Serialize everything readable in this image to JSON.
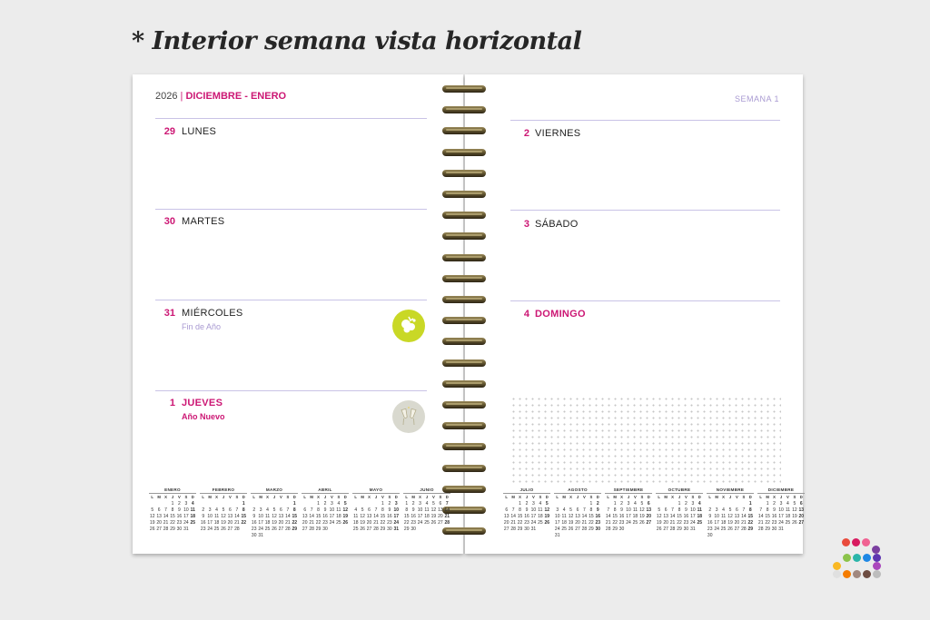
{
  "headline": "* Interior semana vista horizontal",
  "left_page": {
    "year": "2026",
    "separator": "|",
    "months": "DICIEMBRE - ENERO",
    "days": [
      {
        "num": "29",
        "name": "LUNES",
        "note": "",
        "holiday": false
      },
      {
        "num": "30",
        "name": "MARTES",
        "note": "",
        "holiday": false
      },
      {
        "num": "31",
        "name": "MIÉRCOLES",
        "note": "Fin de Año",
        "holiday": false,
        "icon": "celebration-icon"
      },
      {
        "num": "1",
        "name": "JUEVES",
        "note": "Año Nuevo",
        "holiday": true,
        "icon": "champagne-toast-icon"
      }
    ],
    "calendar": {
      "weekday_headers": [
        "L",
        "M",
        "X",
        "J",
        "V",
        "S",
        "D"
      ],
      "months": [
        {
          "name": "ENERO",
          "start": 3,
          "days": 31
        },
        {
          "name": "FEBRERO",
          "start": 6,
          "days": 28
        },
        {
          "name": "MARZO",
          "start": 6,
          "days": 31
        },
        {
          "name": "ABRIL",
          "start": 2,
          "days": 30
        },
        {
          "name": "MAYO",
          "start": 4,
          "days": 31
        },
        {
          "name": "JUNIO",
          "start": 0,
          "days": 30
        }
      ]
    }
  },
  "right_page": {
    "week_label": "SEMANA 1",
    "days": [
      {
        "num": "2",
        "name": "VIERNES",
        "holiday": false
      },
      {
        "num": "3",
        "name": "SÁBADO",
        "holiday": false
      },
      {
        "num": "4",
        "name": "DOMINGO",
        "holiday": true
      }
    ],
    "calendar": {
      "weekday_headers": [
        "L",
        "M",
        "X",
        "J",
        "V",
        "S",
        "D"
      ],
      "months": [
        {
          "name": "JULIO",
          "start": 2,
          "days": 31
        },
        {
          "name": "AGOSTO",
          "start": 5,
          "days": 31
        },
        {
          "name": "SEPTIEMBRE",
          "start": 1,
          "days": 30
        },
        {
          "name": "OCTUBRE",
          "start": 3,
          "days": 31
        },
        {
          "name": "NOVIEMBRE",
          "start": 6,
          "days": 30
        },
        {
          "name": "DICIEMBRE",
          "start": 1,
          "days": 31
        }
      ]
    }
  },
  "colors": {
    "accent": "#cc1774",
    "lavender": "#a99ad2",
    "lime": "#c9d826"
  },
  "brand_logo": {
    "icon": "color-dots-logo-icon",
    "dot_colors": [
      "#e94b3c",
      "#d81b60",
      "#f06292",
      "#7b3fa0",
      "#f9b823",
      "#8bc34a",
      "#2ab5a9",
      "#1e88e5",
      "#5e35b1",
      "#f57c00",
      "#a1887f",
      "#6d4c41",
      "#ab47bc",
      "#bdbdbd",
      "#e0e0e0"
    ]
  }
}
